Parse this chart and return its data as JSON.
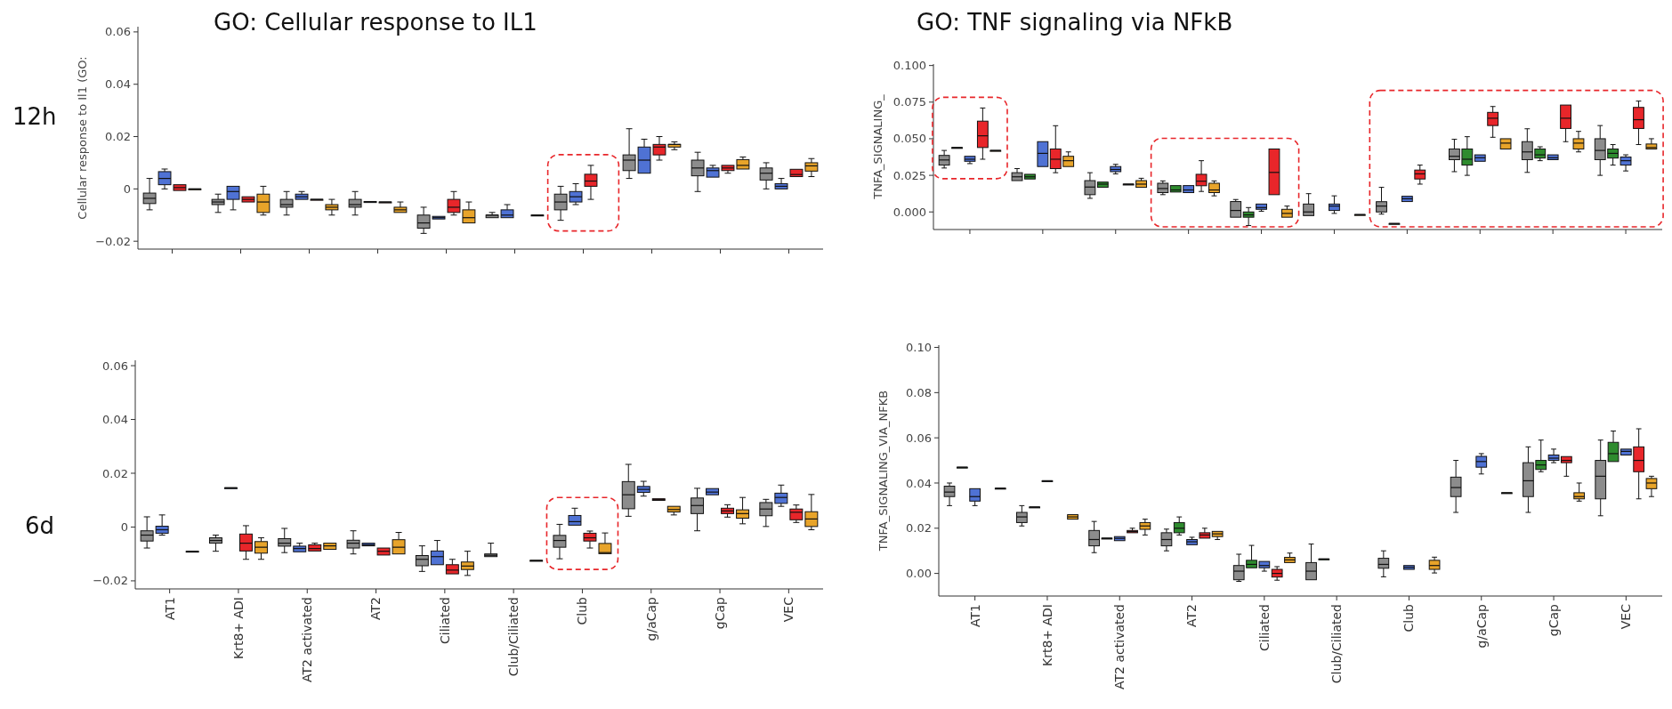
{
  "chart_data": [
    {
      "type": "box",
      "title": "GO: Cellular response to IL1",
      "ylabel": "Cellular response to Il1 (GO:",
      "annotations": [
        "12h"
      ],
      "categories": [
        null,
        null,
        null,
        null,
        null,
        null,
        null,
        null,
        null,
        null
      ],
      "ylim": [
        -0.023,
        0.062
      ],
      "yticks": [
        {
          "value": -0.02,
          "label": "−0.02"
        },
        0,
        0.02,
        0.04,
        0.06
      ],
      "tick_labels": "y",
      "series": [
        {
          "color": "#8c8c8c",
          "boxes": [
            {
              "low": -0.008,
              "q1": -0.0056,
              "median": -0.0036,
              "q3": -0.0016,
              "high": 0.004
            },
            {
              "low": -0.009,
              "q1": -0.006,
              "median": -0.005,
              "q3": -0.004,
              "high": -0.002
            },
            {
              "low": -0.01,
              "q1": -0.007,
              "median": -0.006,
              "q3": -0.004,
              "high": -0.001
            },
            {
              "low": -0.01,
              "q1": -0.007,
              "median": -0.006,
              "q3": -0.004,
              "high": -0.001
            },
            {
              "low": -0.017,
              "q1": -0.015,
              "median": -0.013,
              "q3": -0.01,
              "high": -0.007
            },
            {
              "low": -0.011,
              "q1": -0.011,
              "median": -0.01,
              "q3": -0.01,
              "high": -0.009
            },
            {
              "low": -0.012,
              "q1": -0.008,
              "median": -0.005,
              "q3": -0.002,
              "high": 0.001
            },
            {
              "low": 0.004,
              "q1": 0.007,
              "median": 0.011,
              "q3": 0.013,
              "high": 0.023
            },
            {
              "low": -0.001,
              "q1": 0.005,
              "median": 0.008,
              "q3": 0.011,
              "high": 0.014
            },
            {
              "low": 0,
              "q1": 0.0034,
              "median": 0.006,
              "q3": 0.008,
              "high": 0.01
            }
          ]
        },
        {
          "color": "#4f72d4",
          "boxes": [
            {
              "low": 0,
              "q1": 0.0016,
              "median": 0.004,
              "q3": 0.0066,
              "high": 0.0076
            },
            {
              "low": -0.008,
              "q1": -0.004,
              "median": -0.001,
              "q3": 0.001,
              "high": 0.001
            },
            {
              "low": -0.004,
              "q1": -0.004,
              "median": -0.003,
              "q3": -0.002,
              "high": -0.001
            },
            {
              "low": -0.0052,
              "q1": -0.0052,
              "median": -0.005,
              "q3": -0.0048,
              "high": -0.0048
            },
            {
              "low": -0.0115,
              "q1": -0.0115,
              "median": -0.011,
              "q3": -0.0105,
              "high": -0.0105
            },
            {
              "low": -0.011,
              "q1": -0.011,
              "median": -0.01,
              "q3": -0.008,
              "high": -0.006
            },
            {
              "low": -0.006,
              "q1": -0.005,
              "median": -0.003,
              "q3": -0.001,
              "high": 0.002
            },
            {
              "low": 0.006,
              "q1": 0.006,
              "median": 0.011,
              "q3": 0.016,
              "high": 0.019
            },
            {
              "low": 0.0045,
              "q1": 0.0045,
              "median": 0.007,
              "q3": 0.008,
              "high": 0.009
            },
            {
              "low": 0,
              "q1": 0,
              "median": 0.001,
              "q3": 0.002,
              "high": 0.004
            }
          ]
        },
        {
          "color": "#e8262a",
          "boxes": [
            {
              "low": -0.0006,
              "q1": -0.0006,
              "median": 0.0005,
              "q3": 0.0016,
              "high": 0.0016
            },
            {
              "low": -0.005,
              "q1": -0.005,
              "median": -0.004,
              "q3": -0.003,
              "high": -0.003
            },
            {
              "low": -0.004,
              "q1": -0.004,
              "median": -0.004,
              "q3": -0.004,
              "high": -0.004
            },
            {
              "low": -0.005,
              "q1": -0.005,
              "median": -0.005,
              "q3": -0.005,
              "high": -0.005
            },
            {
              "low": -0.01,
              "q1": -0.009,
              "median": -0.007,
              "q3": -0.004,
              "high": -0.001
            },
            null,
            {
              "low": -0.004,
              "q1": 0.001,
              "median": 0.003,
              "q3": 0.0056,
              "high": 0.009
            },
            {
              "low": 0.011,
              "q1": 0.013,
              "median": 0.016,
              "q3": 0.017,
              "high": 0.02
            },
            {
              "low": 0.006,
              "q1": 0.007,
              "median": 0.008,
              "q3": 0.009,
              "high": 0.009
            },
            {
              "low": 0.0047,
              "q1": 0.0047,
              "median": 0.0055,
              "q3": 0.0075,
              "high": 0.0075
            }
          ]
        },
        {
          "color": "#e8a42a",
          "boxes": [
            {
              "low": 0,
              "q1": 0,
              "median": 0,
              "q3": 0,
              "high": 0
            },
            {
              "low": -0.01,
              "q1": -0.009,
              "median": -0.005,
              "q3": -0.002,
              "high": 0.001
            },
            {
              "low": -0.01,
              "q1": -0.008,
              "median": -0.007,
              "q3": -0.006,
              "high": -0.004
            },
            {
              "low": -0.009,
              "q1": -0.009,
              "median": -0.008,
              "q3": -0.007,
              "high": -0.005
            },
            {
              "low": -0.013,
              "q1": -0.013,
              "median": -0.011,
              "q3": -0.008,
              "high": -0.005
            },
            {
              "low": -0.01,
              "q1": -0.01,
              "median": -0.01,
              "q3": -0.01,
              "high": -0.01
            },
            null,
            {
              "low": 0.015,
              "q1": 0.016,
              "median": 0.017,
              "q3": 0.017,
              "high": 0.018
            },
            {
              "low": 0.0076,
              "q1": 0.0076,
              "median": 0.009,
              "q3": 0.0112,
              "high": 0.0122
            },
            {
              "low": 0.0047,
              "q1": 0.0068,
              "median": 0.0088,
              "q3": 0.01,
              "high": 0.0116
            }
          ]
        }
      ]
    },
    {
      "type": "box",
      "title": "GO: TNF signaling via NFkB",
      "ylabel": "TNFA_SIGNALING_",
      "categories": [
        null,
        null,
        null,
        null,
        null,
        null,
        null,
        null,
        null,
        null
      ],
      "ylim": [
        -0.012,
        0.101
      ],
      "yticks": [
        {
          "value": 0,
          "label": "0.000"
        },
        {
          "value": 0.025,
          "label": "0.025"
        },
        {
          "value": 0.05,
          "label": "0.050"
        },
        {
          "value": 0.075,
          "label": "0.075"
        },
        {
          "value": 0.1,
          "label": "0.100"
        }
      ],
      "tick_labels": "y",
      "series": [
        {
          "color": "#8c8c8c",
          "boxes": [
            {
              "low": 0.03,
              "q1": 0.032,
              "median": 0.0355,
              "q3": 0.0386,
              "high": 0.042
            },
            {
              "low": 0.0214,
              "q1": 0.0214,
              "median": 0.024,
              "q3": 0.0268,
              "high": 0.0296
            },
            {
              "low": 0.0093,
              "q1": 0.0118,
              "median": 0.017,
              "q3": 0.0214,
              "high": 0.0268
            },
            {
              "low": 0.0118,
              "q1": 0.0132,
              "median": 0.016,
              "q3": 0.0196,
              "high": 0.0212
            },
            {
              "low": -0.0036,
              "q1": -0.0036,
              "median": 0.001,
              "q3": 0.0071,
              "high": 0.0085
            },
            {
              "low": -0.0025,
              "q1": -0.0025,
              "median": 0,
              "q3": 0.0054,
              "high": 0.0125
            },
            {
              "low": -0.0015,
              "q1": 0,
              "median": 0.004,
              "q3": 0.007,
              "high": 0.0168
            },
            {
              "low": 0.0275,
              "q1": 0.0357,
              "median": 0.038,
              "q3": 0.043,
              "high": 0.0496
            },
            {
              "low": 0.027,
              "q1": 0.0357,
              "median": 0.041,
              "q3": 0.048,
              "high": 0.0568
            },
            {
              "low": 0.025,
              "q1": 0.0357,
              "median": 0.042,
              "q3": 0.05,
              "high": 0.059
            }
          ]
        },
        {
          "color": "#2e8b2e",
          "boxes": [
            {
              "low": 0.044,
              "q1": 0.044,
              "median": 0.044,
              "q3": 0.044,
              "high": 0.044
            },
            {
              "low": 0.0225,
              "q1": 0.0225,
              "median": 0.024,
              "q3": 0.0257,
              "high": 0.0257
            },
            {
              "low": 0.0168,
              "q1": 0.0168,
              "median": 0.019,
              "q3": 0.0204,
              "high": 0.0204
            },
            {
              "low": 0.0136,
              "q1": 0.0136,
              "median": 0.015,
              "q3": 0.018,
              "high": 0.018
            },
            {
              "low": -0.0093,
              "q1": -0.0036,
              "median": -0.002,
              "q3": 0,
              "high": 0.003
            },
            null,
            {
              "low": -0.0079,
              "q1": -0.0079,
              "median": -0.0079,
              "q3": -0.0079,
              "high": -0.0079
            },
            {
              "low": 0.025,
              "q1": 0.032,
              "median": 0.036,
              "q3": 0.043,
              "high": 0.0514
            },
            {
              "low": 0.035,
              "q1": 0.0368,
              "median": 0.039,
              "q3": 0.043,
              "high": 0.0445
            },
            {
              "low": 0.032,
              "q1": 0.0368,
              "median": 0.04,
              "q3": 0.043,
              "high": 0.046
            }
          ]
        },
        {
          "color": "#4f72d4",
          "boxes": [
            {
              "low": 0.033,
              "q1": 0.0346,
              "median": 0.036,
              "q3": 0.038,
              "high": 0.038
            },
            {
              "low": 0.031,
              "q1": 0.031,
              "median": 0.04,
              "q3": 0.048,
              "high": 0.048
            },
            {
              "low": 0.026,
              "q1": 0.0275,
              "median": 0.029,
              "q3": 0.031,
              "high": 0.0325
            },
            {
              "low": 0.0132,
              "q1": 0.0132,
              "median": 0.015,
              "q3": 0.018,
              "high": 0.018
            },
            {
              "low": 0.0005,
              "q1": 0.0018,
              "median": 0.003,
              "q3": 0.0054,
              "high": 0.0054
            },
            {
              "low": -0.001,
              "q1": 0.001,
              "median": 0.004,
              "q3": 0.0054,
              "high": 0.011
            },
            {
              "low": 0.0071,
              "q1": 0.0071,
              "median": 0.009,
              "q3": 0.0107,
              "high": 0.0107
            },
            {
              "low": 0.0346,
              "q1": 0.0346,
              "median": 0.037,
              "q3": 0.039,
              "high": 0.039
            },
            {
              "low": 0.0357,
              "q1": 0.0357,
              "median": 0.037,
              "q3": 0.039,
              "high": 0.039
            },
            {
              "low": 0.028,
              "q1": 0.032,
              "median": 0.035,
              "q3": 0.0375,
              "high": 0.039
            }
          ]
        },
        {
          "color": "#e8262a",
          "boxes": [
            {
              "low": 0.036,
              "q1": 0.044,
              "median": 0.052,
              "q3": 0.062,
              "high": 0.071
            },
            {
              "low": 0.0268,
              "q1": 0.0296,
              "median": 0.036,
              "q3": 0.043,
              "high": 0.0589
            },
            {
              "low": 0.019,
              "q1": 0.019,
              "median": 0.019,
              "q3": 0.019,
              "high": 0.019
            },
            {
              "low": 0.014,
              "q1": 0.0179,
              "median": 0.021,
              "q3": 0.0257,
              "high": 0.035
            },
            {
              "low": 0.0118,
              "q1": 0.0118,
              "median": 0.027,
              "q3": 0.043,
              "high": 0.043
            },
            null,
            {
              "low": 0.019,
              "q1": 0.0225,
              "median": 0.026,
              "q3": 0.0286,
              "high": 0.032
            },
            {
              "low": 0.051,
              "q1": 0.059,
              "median": 0.064,
              "q3": 0.068,
              "high": 0.072
            },
            {
              "low": 0.048,
              "q1": 0.057,
              "median": 0.064,
              "q3": 0.073,
              "high": 0.073
            },
            {
              "low": 0.046,
              "q1": 0.057,
              "median": 0.063,
              "q3": 0.0714,
              "high": 0.0757
            }
          ]
        },
        {
          "color": "#e8a42a",
          "boxes": [
            {
              "low": 0.042,
              "q1": 0.042,
              "median": 0.042,
              "q3": 0.042,
              "high": 0.042
            },
            {
              "low": 0.031,
              "q1": 0.031,
              "median": 0.035,
              "q3": 0.038,
              "high": 0.041
            },
            {
              "low": 0.0168,
              "q1": 0.0168,
              "median": 0.019,
              "q3": 0.0214,
              "high": 0.023
            },
            {
              "low": 0.011,
              "q1": 0.0132,
              "median": 0.015,
              "q3": 0.0196,
              "high": 0.0212
            },
            {
              "low": -0.0036,
              "q1": -0.0036,
              "median": -0.001,
              "q3": 0.0018,
              "high": 0.004
            },
            {
              "low": -0.0018,
              "q1": -0.0018,
              "median": -0.0018,
              "q3": -0.0018,
              "high": -0.0018
            },
            null,
            {
              "low": 0.043,
              "q1": 0.043,
              "median": 0.047,
              "q3": 0.05,
              "high": 0.05
            },
            {
              "low": 0.041,
              "q1": 0.043,
              "median": 0.047,
              "q3": 0.05,
              "high": 0.055
            },
            {
              "low": 0.043,
              "q1": 0.043,
              "median": 0.044,
              "q3": 0.0464,
              "high": 0.05
            }
          ]
        }
      ]
    },
    {
      "type": "box",
      "annotations": [
        "6d"
      ],
      "categories": [
        "AT1",
        "Krt8+ ADI",
        "AT2 activated",
        "AT2",
        "Ciliated",
        "Club/Ciliated",
        "Club",
        "g/aCap",
        "gCap",
        "VEC"
      ],
      "ylim": [
        -0.023,
        0.062
      ],
      "yticks": [
        {
          "value": -0.02,
          "label": "−0.02"
        },
        0,
        0.02,
        0.04,
        0.06
      ],
      "series": [
        {
          "color": "#8c8c8c",
          "boxes": [
            {
              "low": -0.0078,
              "q1": -0.0052,
              "median": -0.003,
              "q3": -0.0014,
              "high": 0.0038
            },
            {
              "low": -0.009,
              "q1": -0.006,
              "median": -0.005,
              "q3": -0.004,
              "high": -0.003
            },
            {
              "low": -0.0095,
              "q1": -0.0071,
              "median": -0.006,
              "q3": -0.0043,
              "high": -0.0005
            },
            {
              "low": -0.01,
              "q1": -0.0078,
              "median": -0.006,
              "q3": -0.0049,
              "high": -0.0014
            },
            {
              "low": -0.0165,
              "q1": -0.0144,
              "median": -0.012,
              "q3": -0.0106,
              "high": -0.007
            },
            {
              "low": -0.011,
              "q1": -0.011,
              "median": -0.0105,
              "q3": -0.01,
              "high": -0.006
            },
            {
              "low": -0.0118,
              "q1": -0.0075,
              "median": -0.005,
              "q3": -0.0031,
              "high": 0.001
            },
            {
              "low": 0.004,
              "q1": 0.0068,
              "median": 0.012,
              "q3": 0.0169,
              "high": 0.0233
            },
            {
              "low": -0.0014,
              "q1": 0.005,
              "median": 0.008,
              "q3": 0.0108,
              "high": 0.0144
            },
            {
              "low": 0.0002,
              "q1": 0.0042,
              "median": 0.0067,
              "q3": 0.0091,
              "high": 0.0103
            }
          ]
        },
        {
          "color": "#4f72d4",
          "boxes": [
            {
              "low": -0.003,
              "q1": -0.0023,
              "median": -0.001,
              "q3": 0.0003,
              "high": 0.0045
            },
            {
              "low": 0.0146,
              "q1": 0.0146,
              "median": 0.0146,
              "q3": 0.0146,
              "high": 0.0146
            },
            {
              "low": -0.0092,
              "q1": -0.0092,
              "median": -0.008,
              "q3": -0.0071,
              "high": -0.006
            },
            {
              "low": -0.007,
              "q1": -0.007,
              "median": -0.0066,
              "q3": -0.006,
              "high": -0.006
            },
            {
              "low": -0.014,
              "q1": -0.014,
              "median": -0.011,
              "q3": -0.0089,
              "high": -0.005
            },
            null,
            {
              "low": 0.0007,
              "q1": 0.0007,
              "median": 0.002,
              "q3": 0.0043,
              "high": 0.007
            },
            {
              "low": 0.0115,
              "q1": 0.0129,
              "median": 0.014,
              "q3": 0.0151,
              "high": 0.017
            },
            {
              "low": 0.012,
              "q1": 0.012,
              "median": 0.013,
              "q3": 0.0143,
              "high": 0.0143
            },
            {
              "low": 0.0077,
              "q1": 0.0088,
              "median": 0.011,
              "q3": 0.0126,
              "high": 0.0156
            }
          ]
        },
        {
          "color": "#e8262a",
          "boxes": [
            null,
            {
              "low": -0.012,
              "q1": -0.0089,
              "median": -0.006,
              "q3": -0.0026,
              "high": 0.0005
            },
            {
              "low": -0.0089,
              "q1": -0.0089,
              "median": -0.008,
              "q3": -0.0066,
              "high": -0.006
            },
            {
              "low": -0.0104,
              "q1": -0.0104,
              "median": -0.009,
              "q3": -0.0078,
              "high": -0.0078
            },
            {
              "low": -0.0174,
              "q1": -0.0174,
              "median": -0.016,
              "q3": -0.014,
              "high": -0.012
            },
            null,
            {
              "low": -0.0078,
              "q1": -0.0052,
              "median": -0.004,
              "q3": -0.0023,
              "high": -0.0015
            },
            {
              "low": 0.0099,
              "q1": 0.0099,
              "median": 0.0103,
              "q3": 0.0105,
              "high": 0.0105
            },
            {
              "low": 0.0037,
              "q1": 0.005,
              "median": 0.006,
              "q3": 0.007,
              "high": 0.0083
            },
            {
              "low": 0.0017,
              "q1": 0.0027,
              "median": 0.0055,
              "q3": 0.0067,
              "high": 0.0082
            }
          ]
        },
        {
          "color": "#e8a42a",
          "boxes": [
            {
              "low": -0.009,
              "q1": -0.009,
              "median": -0.009,
              "q3": -0.009,
              "high": -0.009
            },
            {
              "low": -0.012,
              "q1": -0.0097,
              "median": -0.0075,
              "q3": -0.0054,
              "high": -0.004
            },
            {
              "low": -0.0083,
              "q1": -0.0083,
              "median": -0.007,
              "q3": -0.006,
              "high": -0.006
            },
            {
              "low": -0.01,
              "q1": -0.01,
              "median": -0.0075,
              "q3": -0.0047,
              "high": -0.002
            },
            {
              "low": -0.018,
              "q1": -0.0158,
              "median": -0.0145,
              "q3": -0.013,
              "high": -0.009
            },
            {
              "low": -0.0124,
              "q1": -0.0124,
              "median": -0.0124,
              "q3": -0.0124,
              "high": -0.0124
            },
            {
              "low": -0.0099,
              "q1": -0.0099,
              "median": -0.0095,
              "q3": -0.0061,
              "high": -0.0022
            },
            {
              "low": 0.0045,
              "q1": 0.0056,
              "median": 0.0065,
              "q3": 0.0077,
              "high": 0.0077
            },
            {
              "low": 0.0012,
              "q1": 0.0033,
              "median": 0.005,
              "q3": 0.0064,
              "high": 0.011
            },
            {
              "low": -0.001,
              "q1": 0.0002,
              "median": 0.003,
              "q3": 0.0057,
              "high": 0.0121
            }
          ]
        }
      ]
    },
    {
      "type": "box",
      "ylabel": "TNFA_SIGNALING_VIA_NFKB",
      "categories": [
        "AT1",
        "Krt8+ ADI",
        "AT2 activated",
        "AT2",
        "Ciliated",
        "Club/Ciliated",
        "Club",
        "g/aCap",
        "gCap",
        "VEC"
      ],
      "ylim": [
        -0.01,
        0.101
      ],
      "yticks": [
        {
          "value": 0,
          "label": "0.00"
        },
        0.02,
        0.04,
        0.06,
        0.08,
        {
          "value": 0.1,
          "label": "0.10"
        }
      ],
      "series": [
        {
          "color": "#8c8c8c",
          "boxes": [
            {
              "low": 0.03,
              "q1": 0.034,
              "median": 0.036,
              "q3": 0.0386,
              "high": 0.04
            },
            {
              "low": 0.021,
              "q1": 0.0225,
              "median": 0.025,
              "q3": 0.027,
              "high": 0.03
            },
            {
              "low": 0.0092,
              "q1": 0.0122,
              "median": 0.015,
              "q3": 0.019,
              "high": 0.023
            },
            {
              "low": 0.01,
              "q1": 0.0122,
              "median": 0.015,
              "q3": 0.018,
              "high": 0.0196
            },
            {
              "low": -0.0035,
              "q1": -0.0028,
              "median": 0.001,
              "q3": 0.0035,
              "high": 0.0085
            },
            {
              "low": -0.0028,
              "q1": -0.0028,
              "median": 0.001,
              "q3": 0.0048,
              "high": 0.013
            },
            {
              "low": -0.0015,
              "q1": 0.0023,
              "median": 0.004,
              "q3": 0.0067,
              "high": 0.01
            },
            {
              "low": 0.027,
              "q1": 0.034,
              "median": 0.038,
              "q3": 0.0426,
              "high": 0.05
            },
            {
              "low": 0.027,
              "q1": 0.034,
              "median": 0.041,
              "q3": 0.049,
              "high": 0.056
            },
            {
              "low": 0.0255,
              "q1": 0.033,
              "median": 0.043,
              "q3": 0.05,
              "high": 0.059
            }
          ]
        },
        {
          "color": "#2e8b2e",
          "boxes": [
            {
              "low": 0.047,
              "q1": 0.047,
              "median": 0.047,
              "q3": 0.047,
              "high": 0.047
            },
            {
              "low": 0.0294,
              "q1": 0.0294,
              "median": 0.0294,
              "q3": 0.0294,
              "high": 0.0294
            },
            {
              "low": 0.0156,
              "q1": 0.0156,
              "median": 0.0156,
              "q3": 0.0156,
              "high": 0.0156
            },
            {
              "low": 0.017,
              "q1": 0.018,
              "median": 0.02,
              "q3": 0.0225,
              "high": 0.025
            },
            {
              "low": 0.0025,
              "q1": 0.0025,
              "median": 0.004,
              "q3": 0.0058,
              "high": 0.0124
            },
            {
              "low": 0.0064,
              "q1": 0.0064,
              "median": 0.0064,
              "q3": 0.0064,
              "high": 0.0064
            },
            null,
            null,
            {
              "low": 0.045,
              "q1": 0.046,
              "median": 0.048,
              "q3": 0.05,
              "high": 0.059
            },
            {
              "low": 0.0495,
              "q1": 0.0495,
              "median": 0.053,
              "q3": 0.058,
              "high": 0.063
            }
          ]
        },
        {
          "color": "#4f72d4",
          "boxes": [
            {
              "low": 0.03,
              "q1": 0.032,
              "median": 0.034,
              "q3": 0.0375,
              "high": 0.0375
            },
            {
              "low": 0.041,
              "q1": 0.041,
              "median": 0.041,
              "q3": 0.041,
              "high": 0.041
            },
            {
              "low": 0.0145,
              "q1": 0.0145,
              "median": 0.0155,
              "q3": 0.0163,
              "high": 0.0163
            },
            {
              "low": 0.0127,
              "q1": 0.0127,
              "median": 0.014,
              "q3": 0.015,
              "high": 0.016
            },
            {
              "low": 0.001,
              "q1": 0.0025,
              "median": 0.0035,
              "q3": 0.0053,
              "high": 0.0053
            },
            null,
            {
              "low": 0.0018,
              "q1": 0.0018,
              "median": 0.0027,
              "q3": 0.0035,
              "high": 0.0035
            },
            {
              "low": 0.044,
              "q1": 0.047,
              "median": 0.0495,
              "q3": 0.0518,
              "high": 0.053
            },
            {
              "low": 0.049,
              "q1": 0.05,
              "median": 0.051,
              "q3": 0.0524,
              "high": 0.055
            },
            {
              "low": 0.0524,
              "q1": 0.0524,
              "median": 0.054,
              "q3": 0.055,
              "high": 0.055
            }
          ]
        },
        {
          "color": "#e8262a",
          "boxes": [
            null,
            null,
            {
              "low": 0.018,
              "q1": 0.018,
              "median": 0.0185,
              "q3": 0.019,
              "high": 0.02
            },
            {
              "low": 0.0156,
              "q1": 0.0156,
              "median": 0.017,
              "q3": 0.018,
              "high": 0.02
            },
            {
              "low": -0.003,
              "q1": -0.0016,
              "median": 0,
              "q3": 0.0018,
              "high": 0.003
            },
            null,
            null,
            null,
            {
              "low": 0.043,
              "q1": 0.049,
              "median": 0.05,
              "q3": 0.0517,
              "high": 0.0517
            },
            {
              "low": 0.033,
              "q1": 0.045,
              "median": 0.05,
              "q3": 0.056,
              "high": 0.064
            }
          ]
        },
        {
          "color": "#e8a42a",
          "boxes": [
            {
              "low": 0.0377,
              "q1": 0.0377,
              "median": 0.0377,
              "q3": 0.0377,
              "high": 0.0377
            },
            {
              "low": 0.024,
              "q1": 0.024,
              "median": 0.025,
              "q3": 0.026,
              "high": 0.026
            },
            {
              "low": 0.017,
              "q1": 0.0195,
              "median": 0.021,
              "q3": 0.0225,
              "high": 0.024
            },
            {
              "low": 0.015,
              "q1": 0.0163,
              "median": 0.0175,
              "q3": 0.0186,
              "high": 0.0186
            },
            {
              "low": 0.0048,
              "q1": 0.0048,
              "median": 0.006,
              "q3": 0.0071,
              "high": 0.009
            },
            null,
            {
              "low": 0.0002,
              "q1": 0.0018,
              "median": 0.0035,
              "q3": 0.0058,
              "high": 0.0072
            },
            {
              "low": 0.0357,
              "q1": 0.0357,
              "median": 0.0357,
              "q3": 0.0357,
              "high": 0.0357
            },
            {
              "low": 0.032,
              "q1": 0.033,
              "median": 0.034,
              "q3": 0.0357,
              "high": 0.04
            },
            {
              "low": 0.034,
              "q1": 0.0375,
              "median": 0.04,
              "q3": 0.042,
              "high": 0.043
            }
          ]
        }
      ]
    }
  ]
}
